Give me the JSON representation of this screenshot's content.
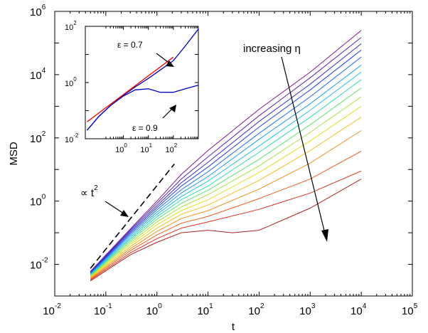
{
  "chart_data": {
    "type": "line",
    "title": "",
    "xlabel": "t",
    "ylabel": "MSD",
    "xscale": "log",
    "yscale": "log",
    "xlim": [
      0.01,
      100000
    ],
    "ylim": [
      0.001,
      1000000
    ],
    "xticks": [
      {
        "base": "10",
        "exp": "-2"
      },
      {
        "base": "10",
        "exp": "-1"
      },
      {
        "base": "10",
        "exp": "0"
      },
      {
        "base": "10",
        "exp": "1"
      },
      {
        "base": "10",
        "exp": "2"
      },
      {
        "base": "10",
        "exp": "3"
      },
      {
        "base": "10",
        "exp": "4"
      },
      {
        "base": "10",
        "exp": "5"
      }
    ],
    "yticks": [
      {
        "base": "10",
        "exp": "-2"
      },
      {
        "base": "10",
        "exp": "0"
      },
      {
        "base": "10",
        "exp": "2"
      },
      {
        "base": "10",
        "exp": "4"
      },
      {
        "base": "10",
        "exp": "6"
      }
    ],
    "series": [
      {
        "color": "#7a1a8c",
        "points": [
          [
            0.05,
            0.006
          ],
          [
            0.3,
            0.13
          ],
          [
            1,
            1.0
          ],
          [
            3,
            7
          ],
          [
            10,
            40
          ],
          [
            100,
            800
          ],
          [
            1000,
            12000
          ],
          [
            10000,
            250000
          ]
        ]
      },
      {
        "color": "#5b24b0",
        "points": [
          [
            0.05,
            0.0058
          ],
          [
            0.3,
            0.12
          ],
          [
            1,
            0.85
          ],
          [
            3,
            5
          ],
          [
            10,
            25
          ],
          [
            100,
            500
          ],
          [
            1000,
            8000
          ],
          [
            10000,
            150000
          ]
        ]
      },
      {
        "color": "#3a30d0",
        "points": [
          [
            0.05,
            0.0056
          ],
          [
            0.3,
            0.11
          ],
          [
            1,
            0.72
          ],
          [
            3,
            3.8
          ],
          [
            10,
            17
          ],
          [
            100,
            330
          ],
          [
            1000,
            5000
          ],
          [
            10000,
            95000
          ]
        ]
      },
      {
        "color": "#2040e8",
        "points": [
          [
            0.05,
            0.0054
          ],
          [
            0.3,
            0.1
          ],
          [
            1,
            0.62
          ],
          [
            3,
            3.0
          ],
          [
            10,
            12
          ],
          [
            100,
            220
          ],
          [
            1000,
            3300
          ],
          [
            10000,
            60000
          ]
        ]
      },
      {
        "color": "#1c6cf0",
        "points": [
          [
            0.05,
            0.0052
          ],
          [
            0.3,
            0.09
          ],
          [
            1,
            0.53
          ],
          [
            3,
            2.3
          ],
          [
            10,
            8.5
          ],
          [
            100,
            140
          ],
          [
            1000,
            2000
          ],
          [
            10000,
            36000
          ]
        ]
      },
      {
        "color": "#1c9bf0",
        "points": [
          [
            0.05,
            0.005
          ],
          [
            0.3,
            0.08
          ],
          [
            1,
            0.45
          ],
          [
            3,
            1.8
          ],
          [
            10,
            6
          ],
          [
            100,
            90
          ],
          [
            1000,
            1200
          ],
          [
            10000,
            20000
          ]
        ]
      },
      {
        "color": "#20c0e0",
        "points": [
          [
            0.05,
            0.0048
          ],
          [
            0.3,
            0.07
          ],
          [
            1,
            0.38
          ],
          [
            3,
            1.4
          ],
          [
            10,
            4.3
          ],
          [
            100,
            55
          ],
          [
            1000,
            750
          ],
          [
            10000,
            12000
          ]
        ]
      },
      {
        "color": "#30d8b0",
        "points": [
          [
            0.05,
            0.0046
          ],
          [
            0.3,
            0.062
          ],
          [
            1,
            0.32
          ],
          [
            3,
            1.1
          ],
          [
            10,
            3.0
          ],
          [
            100,
            35
          ],
          [
            1000,
            450
          ],
          [
            10000,
            7000
          ]
        ]
      },
      {
        "color": "#60e070",
        "points": [
          [
            0.05,
            0.0044
          ],
          [
            0.3,
            0.055
          ],
          [
            1,
            0.27
          ],
          [
            3,
            0.85
          ],
          [
            10,
            2.2
          ],
          [
            100,
            21
          ],
          [
            1000,
            260
          ],
          [
            10000,
            3800
          ]
        ]
      },
      {
        "color": "#a8e040",
        "points": [
          [
            0.05,
            0.0042
          ],
          [
            0.3,
            0.048
          ],
          [
            1,
            0.22
          ],
          [
            3,
            0.65
          ],
          [
            10,
            1.6
          ],
          [
            100,
            13
          ],
          [
            1000,
            150
          ],
          [
            10000,
            2000
          ]
        ]
      },
      {
        "color": "#e0e020",
        "points": [
          [
            0.05,
            0.004
          ],
          [
            0.3,
            0.042
          ],
          [
            1,
            0.18
          ],
          [
            3,
            0.5
          ],
          [
            10,
            1.1
          ],
          [
            100,
            8
          ],
          [
            1000,
            80
          ],
          [
            10000,
            1000
          ]
        ]
      },
      {
        "color": "#f0c020",
        "points": [
          [
            0.05,
            0.0038
          ],
          [
            0.3,
            0.036
          ],
          [
            1,
            0.14
          ],
          [
            3,
            0.38
          ],
          [
            10,
            0.75
          ],
          [
            100,
            4.5
          ],
          [
            1000,
            40
          ],
          [
            10000,
            450
          ]
        ]
      },
      {
        "color": "#f09020",
        "points": [
          [
            0.05,
            0.0036
          ],
          [
            0.3,
            0.031
          ],
          [
            1,
            0.11
          ],
          [
            3,
            0.28
          ],
          [
            10,
            0.5
          ],
          [
            100,
            2.4
          ],
          [
            1000,
            16
          ],
          [
            10000,
            170
          ]
        ]
      },
      {
        "color": "#f06020",
        "points": [
          [
            0.05,
            0.0034
          ],
          [
            0.3,
            0.027
          ],
          [
            1,
            0.085
          ],
          [
            3,
            0.2
          ],
          [
            10,
            0.33
          ],
          [
            100,
            1.2
          ],
          [
            1000,
            5
          ],
          [
            10000,
            38
          ]
        ]
      },
      {
        "color": "#e03020",
        "points": [
          [
            0.05,
            0.0032
          ],
          [
            0.3,
            0.023
          ],
          [
            1,
            0.065
          ],
          [
            3,
            0.14
          ],
          [
            10,
            0.22
          ],
          [
            100,
            0.55
          ],
          [
            1000,
            1.8
          ],
          [
            10000,
            9
          ]
        ]
      },
      {
        "color": "#b02020",
        "points": [
          [
            0.05,
            0.003
          ],
          [
            0.3,
            0.02
          ],
          [
            1,
            0.05
          ],
          [
            3,
            0.1
          ],
          [
            10,
            0.12
          ],
          [
            30,
            0.1
          ],
          [
            100,
            0.12
          ],
          [
            1000,
            0.6
          ],
          [
            10000,
            5
          ]
        ]
      }
    ],
    "reference_line": {
      "style": "dashed",
      "color": "#000000",
      "points": [
        [
          0.05,
          0.0075
        ],
        [
          2.2,
          15
        ]
      ]
    },
    "annotations": {
      "t2_label": "∝ t",
      "t2_exp": "2",
      "increasing_label": "increasing η"
    },
    "inset": {
      "xscale": "log",
      "yscale": "log",
      "xlim": [
        0.03,
        1000
      ],
      "ylim": [
        0.01,
        100
      ],
      "xticks": [
        {
          "base": "10",
          "exp": "0"
        },
        {
          "base": "10",
          "exp": "1"
        },
        {
          "base": "10",
          "exp": "2"
        }
      ],
      "yticks": [
        {
          "base": "10",
          "exp": "-2"
        },
        {
          "base": "10",
          "exp": "0"
        },
        {
          "base": "10",
          "exp": "2"
        }
      ],
      "series": [
        {
          "name": "ε = 0.7",
          "color": "#0000cc",
          "points": [
            [
              0.035,
              0.02
            ],
            [
              0.1,
              0.06
            ],
            [
              0.3,
              0.15
            ],
            [
              1,
              0.35
            ],
            [
              3,
              0.7
            ],
            [
              10,
              1.4
            ],
            [
              30,
              2.8
            ],
            [
              100,
              6
            ],
            [
              300,
              20
            ],
            [
              1000,
              80
            ]
          ]
        },
        {
          "name": "ε = 0.9",
          "color": "#0000cc",
          "points": [
            [
              0.035,
              0.02
            ],
            [
              0.1,
              0.06
            ],
            [
              0.3,
              0.15
            ],
            [
              1,
              0.33
            ],
            [
              3,
              0.55
            ],
            [
              10,
              0.6
            ],
            [
              30,
              0.45
            ],
            [
              100,
              0.45
            ],
            [
              300,
              0.6
            ],
            [
              1000,
              0.8
            ]
          ]
        },
        {
          "name": "",
          "color": "#ff0000",
          "points": [
            [
              0.035,
              0.04
            ],
            [
              100,
              8
            ]
          ]
        }
      ],
      "labels": {
        "eps07": "ε = 0.7",
        "eps09": "ε = 0.9"
      }
    }
  }
}
